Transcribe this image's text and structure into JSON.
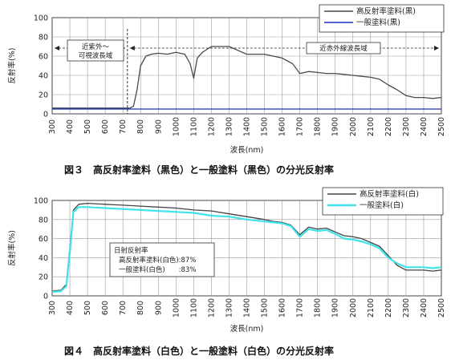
{
  "figures": [
    {
      "caption": "図３　高反射率塗料（黒色）と一般塗料（黒色）の分光反射率",
      "region_left": "近紫外～\n可視波長域",
      "region_right": "近赤外線波長域"
    },
    {
      "caption": "図４　高反射率塗料（白色）と一般塗料（白色）の分光反射率",
      "solar_box": {
        "title": "日射反射率",
        "line1": "高反射率塗料(白色):87%",
        "line2": "一般塗料(白色)　　:83%"
      }
    }
  ],
  "chart_data": [
    {
      "type": "line",
      "title": "",
      "xlabel": "波長(nm)",
      "ylabel": "反射率(%)",
      "xlim": [
        300,
        2500
      ],
      "ylim": [
        0,
        100
      ],
      "xticks": [
        300,
        400,
        500,
        600,
        700,
        800,
        900,
        1000,
        1100,
        1200,
        1300,
        1400,
        1500,
        1600,
        1700,
        1800,
        1900,
        2000,
        2100,
        2200,
        2300,
        2400,
        2500
      ],
      "yticks": [
        0,
        20,
        40,
        60,
        80,
        100
      ],
      "legend_position": "top-right",
      "series": [
        {
          "name": "高反射率塗料(黒)",
          "color": "#4a4a4a",
          "x": [
            300,
            400,
            500,
            600,
            700,
            740,
            760,
            780,
            800,
            830,
            860,
            900,
            950,
            1000,
            1050,
            1080,
            1100,
            1120,
            1150,
            1200,
            1250,
            1300,
            1350,
            1400,
            1450,
            1500,
            1550,
            1600,
            1630,
            1660,
            1700,
            1750,
            1800,
            1850,
            1900,
            1950,
            2000,
            2050,
            2100,
            2150,
            2200,
            2250,
            2300,
            2350,
            2400,
            2450,
            2500
          ],
          "y": [
            6,
            6,
            6,
            6,
            6,
            6,
            8,
            25,
            50,
            60,
            62,
            63,
            62,
            64,
            62,
            52,
            37,
            58,
            64,
            70,
            70,
            70,
            66,
            62,
            62,
            62,
            60,
            58,
            55,
            52,
            42,
            44,
            43,
            42,
            42,
            41,
            40,
            39,
            38,
            36,
            30,
            25,
            19,
            17,
            17,
            16,
            17
          ]
        },
        {
          "name": "一般塗料(黒)",
          "color": "#1a2fc8",
          "x": [
            300,
            400,
            500,
            600,
            700,
            800,
            900,
            1000,
            1100,
            1200,
            1300,
            1400,
            1500,
            1600,
            1700,
            1800,
            1900,
            2000,
            2100,
            2200,
            2300,
            2400,
            2500
          ],
          "y": [
            5,
            5,
            5,
            5,
            5,
            5,
            5,
            5,
            5,
            5,
            5,
            5,
            5,
            5,
            5,
            5,
            5,
            5,
            5,
            5,
            5,
            5,
            5
          ]
        }
      ]
    },
    {
      "type": "line",
      "title": "",
      "xlabel": "波長(nm)",
      "ylabel": "反射率(%)",
      "xlim": [
        300,
        2500
      ],
      "ylim": [
        0,
        100
      ],
      "xticks": [
        300,
        400,
        500,
        600,
        700,
        800,
        900,
        1000,
        1100,
        1200,
        1300,
        1400,
        1500,
        1600,
        1700,
        1800,
        1900,
        2000,
        2100,
        2200,
        2300,
        2400,
        2500
      ],
      "yticks": [
        0,
        20,
        40,
        60,
        80,
        100
      ],
      "legend_position": "top-right",
      "series": [
        {
          "name": "高反射率塗料(白)",
          "color": "#444444",
          "x": [
            300,
            350,
            380,
            400,
            420,
            450,
            500,
            600,
            700,
            800,
            900,
            1000,
            1100,
            1200,
            1300,
            1400,
            1500,
            1550,
            1600,
            1650,
            1700,
            1750,
            1800,
            1850,
            1900,
            1950,
            2000,
            2050,
            2100,
            2150,
            2200,
            2250,
            2300,
            2350,
            2400,
            2450,
            2500
          ],
          "y": [
            5,
            6,
            12,
            50,
            90,
            96,
            97,
            96,
            95,
            94,
            93,
            92,
            90,
            89,
            86,
            83,
            80,
            78,
            77,
            74,
            64,
            72,
            70,
            71,
            67,
            63,
            62,
            60,
            56,
            52,
            42,
            32,
            27,
            27,
            27,
            26,
            27
          ]
        },
        {
          "name": "一般塗料(白)",
          "color": "#3fe3ea",
          "x": [
            300,
            350,
            380,
            400,
            420,
            450,
            500,
            600,
            700,
            800,
            900,
            1000,
            1100,
            1200,
            1300,
            1400,
            1500,
            1550,
            1600,
            1650,
            1700,
            1750,
            1800,
            1850,
            1900,
            1950,
            2000,
            2050,
            2100,
            2150,
            2200,
            2250,
            2300,
            2350,
            2400,
            2450,
            2500
          ],
          "y": [
            4,
            5,
            10,
            45,
            88,
            93,
            93,
            92,
            91,
            90,
            89,
            88,
            87,
            84,
            83,
            80,
            78,
            77,
            76,
            73,
            62,
            70,
            68,
            69,
            65,
            60,
            59,
            57,
            54,
            50,
            40,
            34,
            30,
            30,
            30,
            29,
            30
          ]
        }
      ]
    }
  ]
}
